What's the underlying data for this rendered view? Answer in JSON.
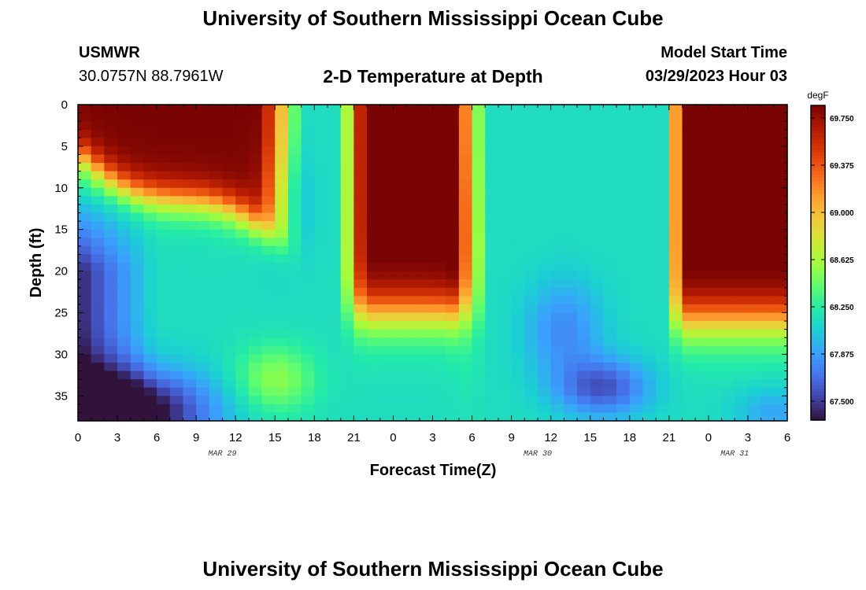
{
  "header": {
    "title": "University of Southern Mississippi Ocean Cube",
    "station": "USMWR",
    "coords": "30.0757N  88.7961W",
    "subtitle": "2-D Temperature at Depth",
    "model_start_label": "Model Start Time",
    "model_start_value": "03/29/2023 Hour 03"
  },
  "footer": {
    "title": "University of Southern Mississippi Ocean Cube"
  },
  "chart_data": {
    "type": "heatmap",
    "xlabel": "Forecast Time(Z)",
    "ylabel": "Depth (ft)",
    "x_tick_labels": [
      "0",
      "3",
      "6",
      "9",
      "12",
      "15",
      "18",
      "21",
      "0",
      "3",
      "6",
      "9",
      "12",
      "15",
      "18",
      "21",
      "0",
      "3",
      "6"
    ],
    "date_labels": [
      {
        "label": "MAR 29",
        "at_hour": 11
      },
      {
        "label": "MAR 30",
        "at_hour": 35
      },
      {
        "label": "MAR 31",
        "at_hour": 50
      }
    ],
    "x_range_hours": [
      0,
      54
    ],
    "y_tick_labels": [
      "0",
      "5",
      "10",
      "15",
      "20",
      "25",
      "30",
      "35"
    ],
    "y_ticks": [
      0,
      5,
      10,
      15,
      20,
      25,
      30,
      35
    ],
    "ylim": [
      0,
      38
    ],
    "colorbar": {
      "unit": "degF",
      "min": 67.35,
      "max": 69.85,
      "tick_labels": [
        "69.750",
        "69.375",
        "69.000",
        "68.625",
        "68.250",
        "67.875",
        "67.500"
      ],
      "tick_values": [
        69.75,
        69.375,
        69.0,
        68.625,
        68.25,
        67.875,
        67.5
      ],
      "colormap": [
        "#30123b",
        "#4145ab",
        "#4675ed",
        "#39a2fc",
        "#1bcfd4",
        "#24eca6",
        "#61fc6c",
        "#a4fc3b",
        "#d1e834",
        "#f3c63a",
        "#fe9b2d",
        "#f36315",
        "#d93806",
        "#b11901",
        "#7a0402"
      ]
    },
    "grid": false
  }
}
